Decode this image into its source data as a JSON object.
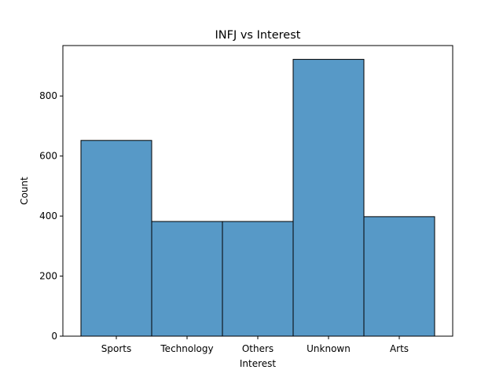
{
  "chart_data": {
    "type": "bar",
    "title": "INFJ vs Interest",
    "xlabel": "Interest",
    "ylabel": "Count",
    "categories": [
      "Sports",
      "Technology",
      "Others",
      "Unknown",
      "Arts"
    ],
    "values": [
      652,
      382,
      382,
      922,
      398
    ],
    "ylim": [
      0,
      968
    ],
    "yticks": [
      0,
      200,
      400,
      600,
      800
    ],
    "grid": false,
    "bar_color": "#5799c7",
    "edge_color": "#000000"
  }
}
